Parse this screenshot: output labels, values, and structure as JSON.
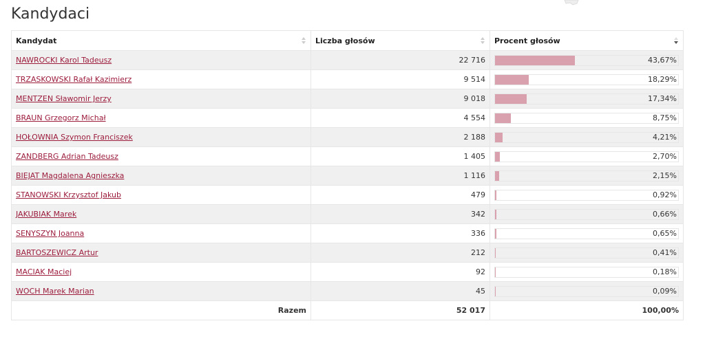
{
  "page": {
    "title": "Kandydaci"
  },
  "table": {
    "headers": {
      "candidate": "Kandydat",
      "votes": "Liczba głosów",
      "percent": "Procent głosów"
    },
    "rows": [
      {
        "name": "NAWROCKI Karol Tadeusz",
        "votes": "22 716",
        "percent_label": "43,67%",
        "percent": 43.67
      },
      {
        "name": "TRZASKOWSKI Rafał Kazimierz",
        "votes": "9 514",
        "percent_label": "18,29%",
        "percent": 18.29
      },
      {
        "name": "MENTZEN Sławomir Jerzy",
        "votes": "9 018",
        "percent_label": "17,34%",
        "percent": 17.34
      },
      {
        "name": "BRAUN Grzegorz Michał",
        "votes": "4 554",
        "percent_label": "8,75%",
        "percent": 8.75
      },
      {
        "name": "HOŁOWNIA Szymon Franciszek",
        "votes": "2 188",
        "percent_label": "4,21%",
        "percent": 4.21
      },
      {
        "name": "ZANDBERG Adrian Tadeusz",
        "votes": "1 405",
        "percent_label": "2,70%",
        "percent": 2.7
      },
      {
        "name": "BIEJAT Magdalena Agnieszka",
        "votes": "1 116",
        "percent_label": "2,15%",
        "percent": 2.15
      },
      {
        "name": "STANOWSKI Krzysztof Jakub",
        "votes": "479",
        "percent_label": "0,92%",
        "percent": 0.92
      },
      {
        "name": "JAKUBIAK Marek",
        "votes": "342",
        "percent_label": "0,66%",
        "percent": 0.66
      },
      {
        "name": "SENYSZYN Joanna",
        "votes": "336",
        "percent_label": "0,65%",
        "percent": 0.65
      },
      {
        "name": "BARTOSZEWICZ Artur",
        "votes": "212",
        "percent_label": "0,41%",
        "percent": 0.41
      },
      {
        "name": "MACIAK Maciej",
        "votes": "92",
        "percent_label": "0,18%",
        "percent": 0.18
      },
      {
        "name": "WOCH Marek Marian",
        "votes": "45",
        "percent_label": "0,09%",
        "percent": 0.09
      }
    ],
    "footer": {
      "label": "Razem",
      "votes": "52 017",
      "percent": "100,00%"
    }
  },
  "colors": {
    "link": "#9c1c3c",
    "bar": "#d9a1ad",
    "row_alt": "#f0f0f0"
  },
  "icons": {
    "sort_candidate": "sort-both-icon",
    "sort_votes": "sort-both-icon",
    "sort_percent": "sort-desc-icon"
  }
}
